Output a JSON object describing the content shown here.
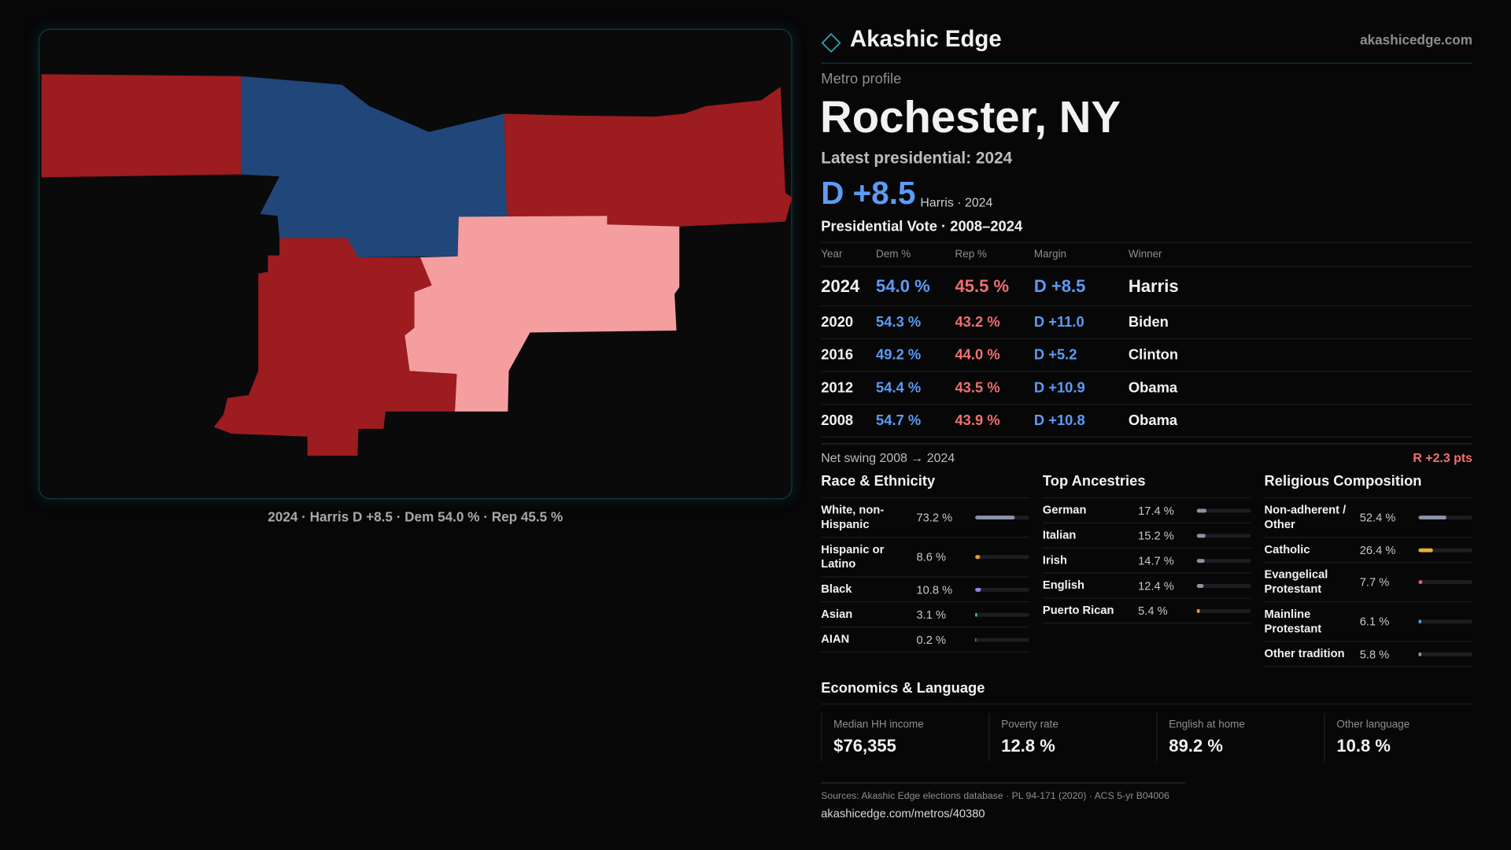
{
  "header": {
    "brand": "Akashic Edge",
    "site": "akashicedge.com"
  },
  "map": {
    "caption": "2024 · Harris D +8.5 · Dem 54.0 % · Rep 45.5 %"
  },
  "profile": {
    "kicker": "Metro profile",
    "title": "Rochester, NY",
    "latest": "Latest presidential: 2024",
    "margin": "D +8.5",
    "winner_note": "Harris · 2024"
  },
  "vote_table": {
    "title": "Presidential Vote · 2008–2024",
    "columns": [
      "Year",
      "Dem %",
      "Rep %",
      "Margin",
      "Winner"
    ],
    "rows": [
      [
        "2024",
        "54.0 %",
        "45.5 %",
        "D +8.5",
        "Harris"
      ],
      [
        "2020",
        "54.3 %",
        "43.2 %",
        "D +11.0",
        "Biden"
      ],
      [
        "2016",
        "49.2 %",
        "44.0 %",
        "D +5.2",
        "Clinton"
      ],
      [
        "2012",
        "54.4 %",
        "43.5 %",
        "D +10.9",
        "Obama"
      ],
      [
        "2008",
        "54.7 %",
        "43.9 %",
        "D +10.8",
        "Obama"
      ]
    ]
  },
  "swing": {
    "label": "Net swing 2008 → 2024",
    "value": "R +2.3 pts"
  },
  "sections": [
    {
      "title": "Race & Ethnicity",
      "items": [
        {
          "label": "White, non-Hispanic",
          "value": 73.2,
          "value_label": "73.2 %",
          "color": "#8b93a6"
        },
        {
          "label": "Hispanic or Latino",
          "value": 8.6,
          "value_label": "8.6 %",
          "color": "#e0a030"
        },
        {
          "label": "Black",
          "value": 10.8,
          "value_label": "10.8 %",
          "color": "#9b7fe0"
        },
        {
          "label": "Asian",
          "value": 3.1,
          "value_label": "3.1 %",
          "color": "#3cc0a0"
        },
        {
          "label": "AIAN",
          "value": 0.2,
          "value_label": "0.2 %",
          "color": "#c0604a"
        }
      ]
    },
    {
      "title": "Top Ancestries",
      "items": [
        {
          "label": "German",
          "value": 17.4,
          "value_label": "17.4 %",
          "color": "#8b93a6"
        },
        {
          "label": "Italian",
          "value": 15.2,
          "value_label": "15.2 %",
          "color": "#8b93a6"
        },
        {
          "label": "Irish",
          "value": 14.7,
          "value_label": "14.7 %",
          "color": "#8b93a6"
        },
        {
          "label": "English",
          "value": 12.4,
          "value_label": "12.4 %",
          "color": "#8b93a6"
        },
        {
          "label": "Puerto Rican",
          "value": 5.4,
          "value_label": "5.4 %",
          "color": "#e0a030"
        }
      ]
    },
    {
      "title": "Religious Composition",
      "items": [
        {
          "label": "Non-adherent / Other",
          "value": 52.4,
          "value_label": "52.4 %",
          "color": "#8b93a6"
        },
        {
          "label": "Catholic",
          "value": 26.4,
          "value_label": "26.4 %",
          "color": "#e8b030"
        },
        {
          "label": "Evangelical Protestant",
          "value": 7.7,
          "value_label": "7.7 %",
          "color": "#e06060"
        },
        {
          "label": "Mainline Protestant",
          "value": 6.1,
          "value_label": "6.1 %",
          "color": "#5b8ee0"
        },
        {
          "label": "Other tradition",
          "value": 5.8,
          "value_label": "5.8 %",
          "color": "#8b93a6"
        }
      ]
    }
  ],
  "economics": {
    "title": "Economics & Language",
    "cards": [
      {
        "label": "Median HH income",
        "value": "$76,355"
      },
      {
        "label": "Poverty rate",
        "value": "12.8 %"
      },
      {
        "label": "English at home",
        "value": "89.2 %"
      },
      {
        "label": "Other language",
        "value": "10.8 %"
      }
    ]
  },
  "footer": {
    "sources": "Sources: Akashic Edge elections database · PL 94-171 (2020) · ACS 5-yr B04006",
    "url": "akashicedge.com/metros/40380"
  }
}
